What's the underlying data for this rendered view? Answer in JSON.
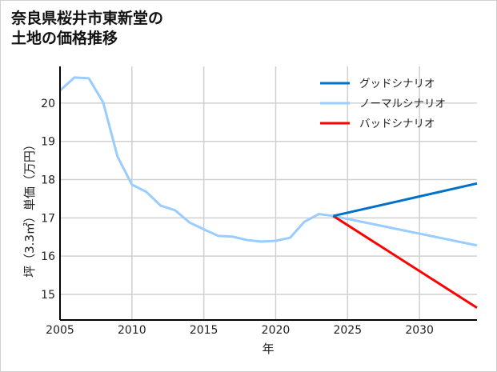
{
  "title_line1": "奈良県桜井市東新堂の",
  "title_line2": "土地の価格推移",
  "chart_data": {
    "type": "line",
    "title": "奈良県桜井市東新堂の土地の価格推移",
    "xlabel": "年",
    "ylabel": "坪（3.3㎡）単価（万円）",
    "xlim": [
      2005,
      2034
    ],
    "ylim": [
      14.33,
      20.96
    ],
    "xticks": [
      2005,
      2010,
      2015,
      2020,
      2025,
      2030
    ],
    "yticks": [
      15,
      16,
      17,
      18,
      19,
      20
    ],
    "grid": true,
    "legend_position": "top-right",
    "series": [
      {
        "name": "グッドシナリオ",
        "color": "#0070C8",
        "x": [
          2024,
          2034
        ],
        "y": [
          17.05,
          17.9
        ]
      },
      {
        "name": "ノーマルシナリオ",
        "color": "#99CCFF",
        "x": [
          2005,
          2006,
          2007,
          2008,
          2009,
          2010,
          2011,
          2012,
          2013,
          2014,
          2015,
          2016,
          2017,
          2018,
          2019,
          2020,
          2021,
          2022,
          2023,
          2024,
          2034
        ],
        "y": [
          20.33,
          20.67,
          20.65,
          20.02,
          18.6,
          17.87,
          17.68,
          17.32,
          17.2,
          16.88,
          16.7,
          16.53,
          16.51,
          16.42,
          16.38,
          16.4,
          16.48,
          16.9,
          17.1,
          17.05,
          16.28
        ]
      },
      {
        "name": "バッドシナリオ",
        "color": "#FF0000",
        "x": [
          2024,
          2034
        ],
        "y": [
          17.05,
          14.65
        ]
      }
    ]
  }
}
